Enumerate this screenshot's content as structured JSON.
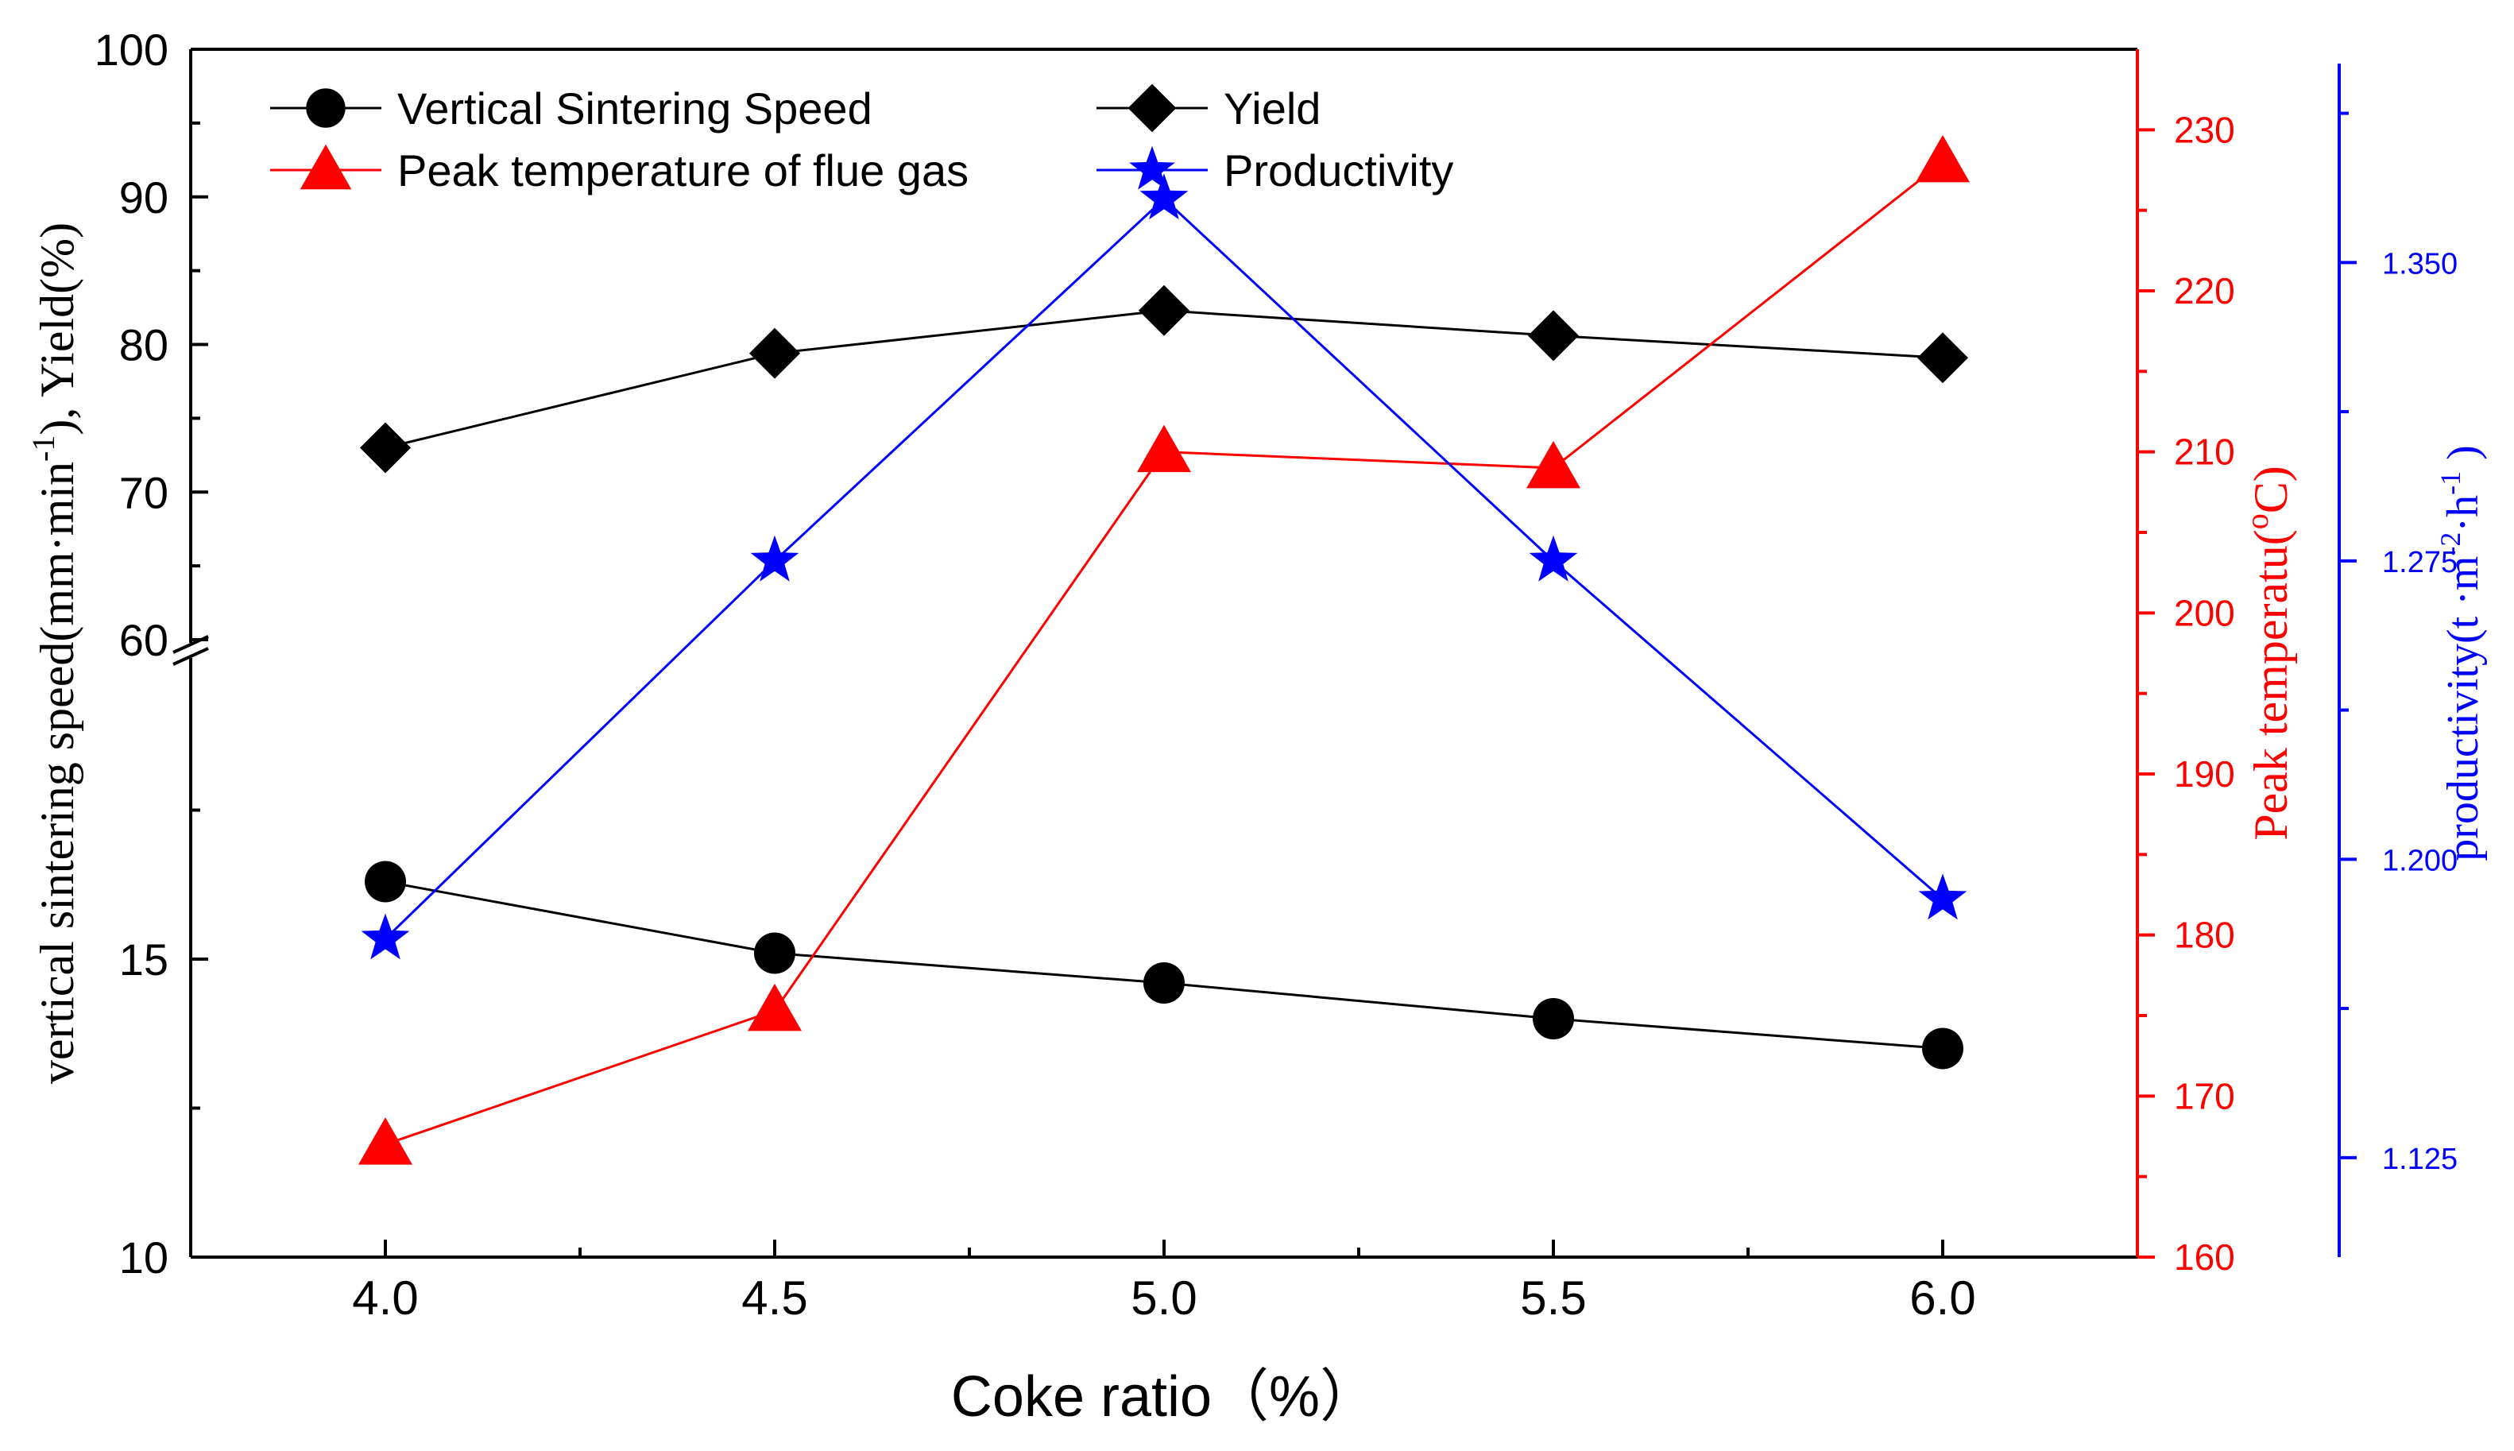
{
  "chart_data": {
    "type": "line",
    "x": [
      4.0,
      4.5,
      5.0,
      5.5,
      6.0
    ],
    "xlabel": "Coke ratio（%）",
    "xlim": [
      3.75,
      6.25
    ],
    "x_ticks": [
      "4.0",
      "4.5",
      "5.0",
      "5.5",
      "6.0"
    ],
    "left_axis": {
      "label": "vertical sintering speed(mm·min-1), Yield(%)",
      "label_main": "vertical sintering speed(mm·min",
      "label_sup": "-1",
      "label_tail": "), Yield(%)",
      "upper_segment": {
        "range": [
          60,
          100
        ],
        "ticks": [
          "60",
          "70",
          "80",
          "90",
          "100"
        ]
      },
      "lower_segment": {
        "range": [
          10,
          20
        ],
        "ticks": [
          "10",
          "15"
        ]
      },
      "break": "between 20 and 60"
    },
    "right_axis_1": {
      "label": "Peak temperatu(°C)",
      "label_main": "Peak temperatu(",
      "label_sup": "o",
      "label_tail": "C)",
      "range": [
        160,
        235
      ],
      "ticks": [
        "160",
        "170",
        "180",
        "190",
        "200",
        "210",
        "220",
        "230"
      ],
      "color": "#ff0000"
    },
    "right_axis_2": {
      "label": "productivity(t·m-2·h-1)",
      "label_main": "productivity(t ·m",
      "label_sup1": "-2",
      "label_mid": "·h",
      "label_sup2": "-1",
      "label_tail": " )",
      "range": [
        1.1,
        1.4
      ],
      "ticks": [
        "1.125",
        "1.200",
        "1.275",
        "1.350"
      ],
      "color": "#0000ff"
    },
    "series": [
      {
        "name": "Vertical Sintering Speed",
        "axis": "left-lower",
        "marker": "circle",
        "color": "#000000",
        "values": [
          16.3,
          15.1,
          14.6,
          14.0,
          13.5
        ]
      },
      {
        "name": "Yield",
        "axis": "left-upper",
        "marker": "diamond",
        "color": "#000000",
        "values": [
          73.0,
          79.4,
          82.3,
          80.6,
          79.1
        ]
      },
      {
        "name": "Peak temperature of flue gas",
        "axis": "right-1",
        "marker": "triangle",
        "color": "#ff0000",
        "values": [
          167.0,
          175.3,
          210.0,
          209.0,
          228.0
        ]
      },
      {
        "name": "Productivity",
        "axis": "right-2",
        "marker": "star",
        "color": "#0000ff",
        "values": [
          1.18,
          1.275,
          1.366,
          1.275,
          1.19
        ]
      }
    ],
    "legend": {
      "position": "top-left",
      "columns": 2
    }
  }
}
